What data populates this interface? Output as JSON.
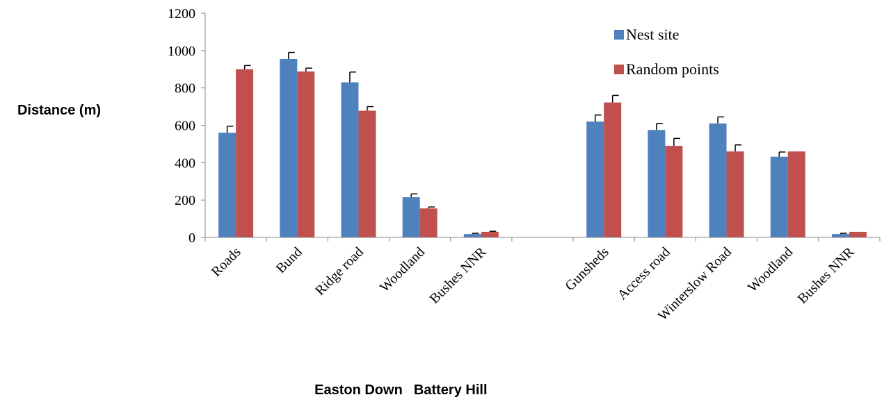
{
  "chart_data": {
    "type": "bar",
    "ylabel": "Distance (m)",
    "ylim": [
      0,
      1200
    ],
    "yticks": [
      0,
      200,
      400,
      600,
      800,
      1000,
      1200
    ],
    "grid": false,
    "legend_position": "top-right",
    "categories": [
      "Roads",
      "Bund",
      "Ridge road",
      "Woodland",
      "Bushes NNR",
      "",
      "Gunsheds",
      "Access road",
      "Winterslow Road",
      "Woodland",
      "Bushes NNR"
    ],
    "groups": [
      {
        "label": "Easton Down",
        "categories": [
          "Roads",
          "Bund",
          "Ridge road",
          "Woodland",
          "Bushes NNR"
        ]
      },
      {
        "label": "Battery Hill",
        "categories": [
          "Gunsheds",
          "Access road",
          "Winterslow Road",
          "Woodland",
          "Bushes NNR"
        ]
      }
    ],
    "series": [
      {
        "name": "Nest site",
        "color": "#4f81bd",
        "values": [
          560,
          955,
          830,
          215,
          18,
          null,
          620,
          575,
          610,
          432,
          18
        ],
        "errors": [
          35,
          35,
          55,
          18,
          4,
          null,
          35,
          35,
          35,
          25,
          4
        ]
      },
      {
        "name": "Random points",
        "color": "#c0504d",
        "values": [
          900,
          888,
          678,
          155,
          30,
          null,
          722,
          490,
          460,
          460,
          30
        ],
        "errors": [
          20,
          18,
          22,
          8,
          3,
          null,
          38,
          40,
          35,
          0,
          0
        ]
      }
    ]
  }
}
